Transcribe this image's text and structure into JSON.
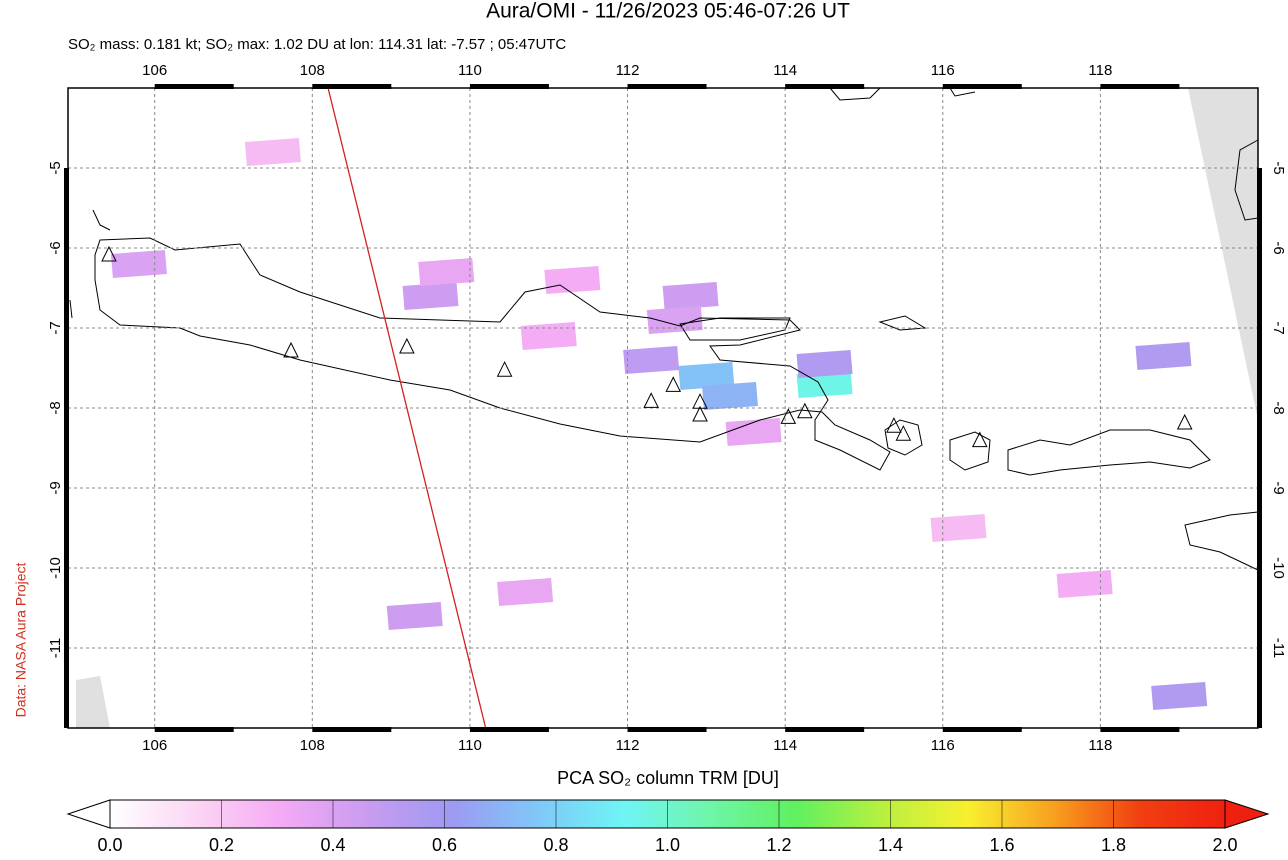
{
  "chart_data": {
    "type": "map",
    "title": "Aura/OMI - 11/26/2023 05:46-07:26 UT",
    "subtitle": "SO₂ mass: 0.181 kt; SO₂ max: 1.02 DU at lon: 114.31 lat: -7.57 ; 05:47UTC",
    "side_note": "Data: NASA Aura Project",
    "colorbar_label": "PCA SO₂ column TRM [DU]",
    "xlim": [
      104.9,
      120.0
    ],
    "ylim": [
      -12.0,
      -4.0
    ],
    "xticks": [
      106,
      108,
      110,
      112,
      114,
      116,
      118
    ],
    "yticks": [
      -5,
      -6,
      -7,
      -8,
      -9,
      -10,
      -11
    ],
    "grid": true,
    "clim": [
      0,
      2
    ],
    "cticks": [
      {
        "value": 0,
        "label": "0.0"
      },
      0.2,
      0.4,
      0.6,
      0.8,
      {
        "value": 1,
        "label": "1.0"
      },
      1.2,
      1.4,
      1.6,
      1.8,
      {
        "value": 2,
        "label": "2.0"
      }
    ],
    "colormap": [
      "#ffffff",
      "#fbd6f4",
      "#f4aaf4",
      "#c99cf0",
      "#9d9af2",
      "#7fc8f8",
      "#6ff5f5",
      "#6ff5a8",
      "#60f060",
      "#b8f040",
      "#f8f030",
      "#f8a020",
      "#f04010",
      "#f02010"
    ],
    "so2_pixels": {
      "lon": [
        113.0,
        113.3,
        114.5,
        114.5,
        112.3,
        112.8,
        109.5,
        109.7,
        105.8,
        118.8,
        119.0,
        110.7,
        109.3,
        112.6,
        111.3,
        107.5,
        111.0,
        116.2,
        117.8,
        113.6
      ],
      "lat": [
        -7.6,
        -7.85,
        -7.7,
        -7.45,
        -7.4,
        -6.6,
        -6.6,
        -6.3,
        -6.2,
        -7.35,
        -11.6,
        -10.3,
        -10.6,
        -6.9,
        -6.4,
        -4.8,
        -7.1,
        -9.5,
        -10.2,
        -8.3
      ],
      "values": [
        0.75,
        0.7,
        0.95,
        0.55,
        0.5,
        0.45,
        0.45,
        0.35,
        0.4,
        0.55,
        0.55,
        0.35,
        0.45,
        0.4,
        0.3,
        0.25,
        0.3,
        0.25,
        0.3,
        0.35
      ]
    },
    "volcanoes": {
      "lon": [
        105.42,
        107.73,
        109.2,
        110.44,
        112.3,
        112.58,
        112.92,
        112.92,
        114.04,
        114.25,
        115.38,
        115.5,
        116.47,
        119.07
      ],
      "lat": [
        -6.1,
        -7.3,
        -7.25,
        -7.54,
        -7.93,
        -7.73,
        -7.94,
        -8.1,
        -8.13,
        -8.06,
        -8.24,
        -8.34,
        -8.42,
        -8.2
      ]
    },
    "orbit_track": {
      "lon": [
        108.2,
        110.2
      ],
      "lat": [
        -4.0,
        -12.0
      ],
      "color": "#d42020"
    }
  }
}
